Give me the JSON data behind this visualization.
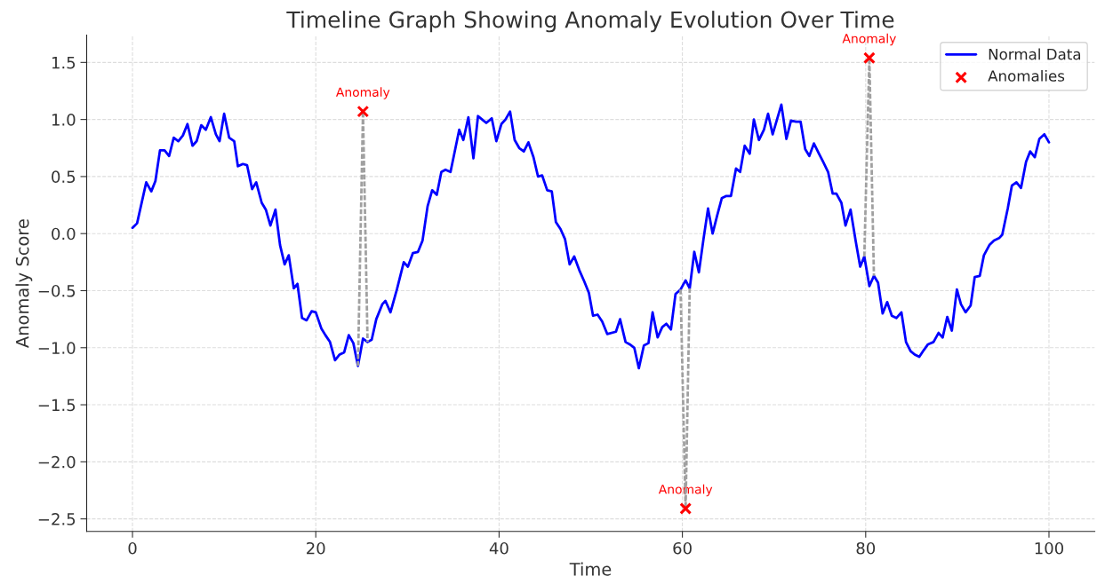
{
  "chart_data": {
    "type": "line",
    "title": "Timeline Graph Showing Anomaly Evolution Over Time",
    "xlabel": "Time",
    "ylabel": "Anomaly Score",
    "xlim": [
      -5,
      105
    ],
    "xticks": [
      0,
      20,
      40,
      60,
      80,
      100
    ],
    "ylim": [
      -2.61,
      1.74
    ],
    "yticks": [
      {
        "value": -2.5,
        "label": "−2.5"
      },
      {
        "value": -2.0,
        "label": "−2.0"
      },
      {
        "value": -1.5,
        "label": "−1.5"
      },
      {
        "value": -1.0,
        "label": "−1.0"
      },
      {
        "value": -0.5,
        "label": "−0.5"
      },
      {
        "value": 0.0,
        "label": "0.0"
      },
      {
        "value": 0.5,
        "label": "0.5"
      },
      {
        "value": 1.0,
        "label": "1.0"
      },
      {
        "value": 1.5,
        "label": "1.5"
      }
    ],
    "grid": true,
    "legend": "top right",
    "series": [
      {
        "color": "#a0a0a0",
        "line_style": "dashed",
        "x": [
          24.6,
          25.15,
          25.65
        ],
        "values": [
          -1.16,
          1.07,
          -0.95
        ]
      },
      {
        "color": "#a0a0a0",
        "line_style": "dashed",
        "x": [
          59.8,
          60.35,
          60.8
        ],
        "values": [
          -0.49,
          -2.41,
          -0.48
        ]
      },
      {
        "color": "#a0a0a0",
        "line_style": "dashed",
        "x": [
          79.85,
          80.4,
          80.9
        ],
        "values": [
          -0.2,
          1.54,
          -0.37
        ]
      },
      {
        "name": "Normal Data",
        "color": "#0000ff",
        "line_style": "solid",
        "x": [
          0,
          0.5,
          1.5,
          2.05,
          2.5,
          3.0,
          3.5,
          4.0,
          4.5,
          5.0,
          5.5,
          6.0,
          6.55,
          7.0,
          7.5,
          8.0,
          8.55,
          9.1,
          9.5,
          10.0,
          10.55,
          11.1,
          11.5,
          12.05,
          12.5,
          13.05,
          13.5,
          14.1,
          14.55,
          15.05,
          15.6,
          16.1,
          16.6,
          17.05,
          17.6,
          18.0,
          18.5,
          19.0,
          19.55,
          20.0,
          20.6,
          21.05,
          21.55,
          22.1,
          22.6,
          23.1,
          23.6,
          24.1,
          24.6,
          25.15,
          25.65,
          26.1,
          26.6,
          27.25,
          27.6,
          28.15,
          28.85,
          29.6,
          30.05,
          30.6,
          31.15,
          31.65,
          32.2,
          32.7,
          33.2,
          33.7,
          34.15,
          34.7,
          35.65,
          36.1,
          36.65,
          37.2,
          37.7,
          38.15,
          38.6,
          39.2,
          39.7,
          40.25,
          40.7,
          41.2,
          41.7,
          42.2,
          42.7,
          43.2,
          43.75,
          44.25,
          44.7,
          45.25,
          45.75,
          46.2,
          46.7,
          47.2,
          47.7,
          48.2,
          48.75,
          49.3,
          49.8,
          50.25,
          50.75,
          51.25,
          51.8,
          52.75,
          53.2,
          53.8,
          54.25,
          54.75,
          55.25,
          55.8,
          56.3,
          56.75,
          57.3,
          57.8,
          58.25,
          58.75,
          59.25,
          59.8,
          60.35,
          60.8,
          61.3,
          61.8,
          62.3,
          62.8,
          63.3,
          63.8,
          64.3,
          64.8,
          65.3,
          65.85,
          66.3,
          66.8,
          67.35,
          67.8,
          68.35,
          68.9,
          69.35,
          69.85,
          70.8,
          71.35,
          71.85,
          72.4,
          72.9,
          73.4,
          73.85,
          74.35,
          74.9,
          75.35,
          75.9,
          76.4,
          76.8,
          77.35,
          77.8,
          78.35,
          78.9,
          79.4,
          79.85,
          80.4,
          80.9,
          81.35,
          81.85,
          82.35,
          82.85,
          83.35,
          83.9,
          84.4,
          84.9,
          85.35,
          85.85,
          86.35,
          86.8,
          87.4,
          87.95,
          88.4,
          88.9,
          89.4,
          89.95,
          90.4,
          90.9,
          91.45,
          91.9,
          92.45,
          92.9,
          93.5,
          94.0,
          94.55,
          94.9,
          95.5,
          95.95,
          96.45,
          96.95,
          97.5,
          97.95,
          98.45,
          98.95,
          99.5,
          100
        ],
        "values": [
          0.05,
          0.09,
          0.45,
          0.37,
          0.46,
          0.73,
          0.73,
          0.68,
          0.84,
          0.81,
          0.86,
          0.96,
          0.77,
          0.81,
          0.95,
          0.91,
          1.02,
          0.87,
          0.81,
          1.05,
          0.84,
          0.81,
          0.59,
          0.61,
          0.6,
          0.39,
          0.45,
          0.27,
          0.21,
          0.07,
          0.21,
          -0.1,
          -0.27,
          -0.19,
          -0.48,
          -0.44,
          -0.74,
          -0.76,
          -0.68,
          -0.69,
          -0.83,
          -0.89,
          -0.95,
          -1.11,
          -1.06,
          -1.04,
          -0.89,
          -0.96,
          -1.16,
          -0.92,
          -0.95,
          -0.93,
          -0.75,
          -0.62,
          -0.59,
          -0.69,
          -0.49,
          -0.25,
          -0.29,
          -0.17,
          -0.16,
          -0.06,
          0.24,
          0.38,
          0.34,
          0.54,
          0.56,
          0.54,
          0.91,
          0.82,
          1.02,
          0.66,
          1.03,
          1.0,
          0.97,
          1.01,
          0.81,
          0.96,
          1.0,
          1.07,
          0.82,
          0.75,
          0.72,
          0.8,
          0.67,
          0.5,
          0.51,
          0.38,
          0.37,
          0.1,
          0.04,
          -0.05,
          -0.27,
          -0.2,
          -0.32,
          -0.42,
          -0.52,
          -0.72,
          -0.71,
          -0.77,
          -0.88,
          -0.86,
          -0.75,
          -0.95,
          -0.97,
          -1.0,
          -1.18,
          -0.98,
          -0.96,
          -0.69,
          -0.91,
          -0.82,
          -0.79,
          -0.84,
          -0.53,
          -0.49,
          -0.41,
          -0.48,
          -0.16,
          -0.34,
          -0.05,
          0.22,
          0.0,
          0.16,
          0.31,
          0.33,
          0.33,
          0.57,
          0.54,
          0.77,
          0.7,
          1.0,
          0.82,
          0.91,
          1.05,
          0.87,
          1.13,
          0.83,
          0.99,
          0.98,
          0.98,
          0.74,
          0.68,
          0.79,
          0.7,
          0.63,
          0.54,
          0.35,
          0.35,
          0.27,
          0.07,
          0.21,
          -0.06,
          -0.29,
          -0.2,
          -0.46,
          -0.37,
          -0.43,
          -0.7,
          -0.6,
          -0.72,
          -0.74,
          -0.69,
          -0.95,
          -1.03,
          -1.06,
          -1.08,
          -1.02,
          -0.97,
          -0.95,
          -0.87,
          -0.91,
          -0.73,
          -0.85,
          -0.49,
          -0.62,
          -0.69,
          -0.63,
          -0.38,
          -0.37,
          -0.19,
          -0.1,
          -0.06,
          -0.04,
          -0.01,
          0.22,
          0.42,
          0.45,
          0.4,
          0.63,
          0.72,
          0.67,
          0.83,
          0.87,
          0.8
        ]
      },
      {
        "type": "scatter",
        "name": "Anomalies",
        "color": "#ff0000",
        "marker": "cross",
        "x": [
          25.15,
          60.35,
          80.4
        ],
        "values": [
          1.07,
          -2.41,
          1.54
        ]
      }
    ],
    "annotations": [
      {
        "text": "Anomaly",
        "x": 25.15,
        "y": 1.07
      },
      {
        "text": "Anomaly",
        "x": 60.35,
        "y": -2.41
      },
      {
        "text": "Anomaly",
        "x": 80.4,
        "y": 1.54
      }
    ]
  }
}
